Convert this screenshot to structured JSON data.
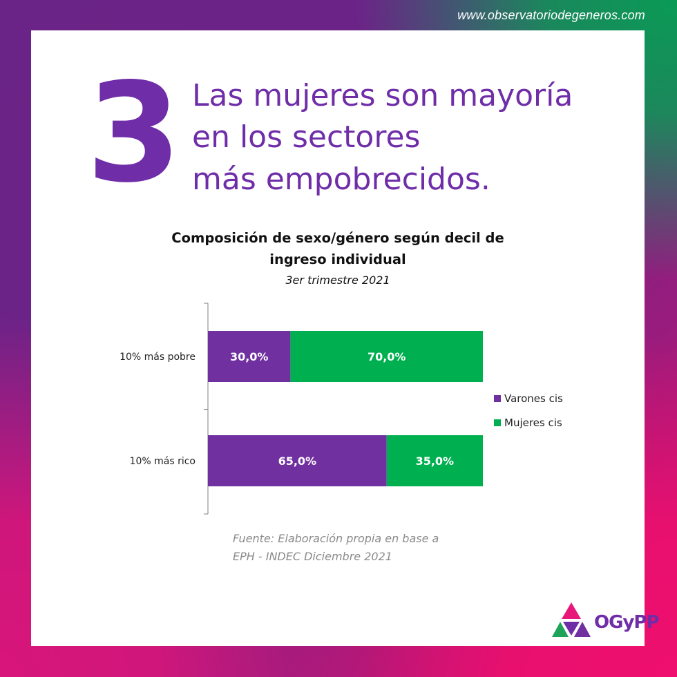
{
  "site_url": "www.observatoriodegeneros.com",
  "big_number": "3",
  "headline": [
    "Las mujeres son mayoría",
    "en los sectores",
    "más empobrecidos."
  ],
  "colors": {
    "varones": "#7030a0",
    "mujeres": "#00b050",
    "headline": "#6f2da8"
  },
  "chart_data": {
    "type": "bar",
    "orientation": "horizontal",
    "stacked": true,
    "title_lines": [
      "Composición de sexo/género según decil de",
      "ingreso individual"
    ],
    "subtitle": "3er trimestre 2021",
    "categories": [
      "10% más pobre",
      "10% más rico"
    ],
    "series": [
      {
        "name": "Varones cis",
        "values": [
          30.0,
          65.0
        ],
        "labels": [
          "30,0%",
          "65,0%"
        ],
        "color": "#7030a0"
      },
      {
        "name": "Mujeres cis",
        "values": [
          70.0,
          35.0
        ],
        "labels": [
          "70,0%",
          "35,0%"
        ],
        "color": "#00b050"
      }
    ],
    "xlim": [
      0,
      100
    ],
    "grid": false,
    "legend_position": "right"
  },
  "source": [
    "Fuente: Elaboración propia en base a",
    "EPH - INDEC Diciembre 2021"
  ],
  "logo": {
    "text": "OGyPP",
    "icon": "ogypp-triangle-logo-icon"
  }
}
